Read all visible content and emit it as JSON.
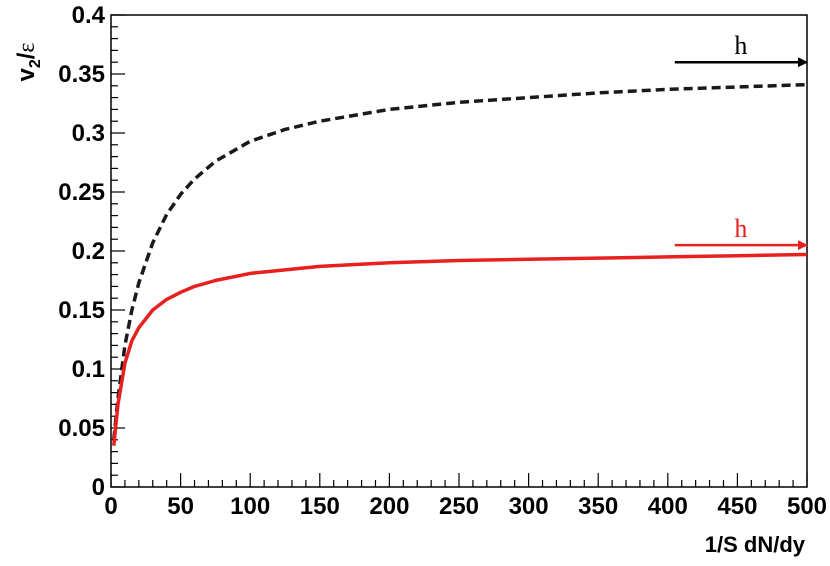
{
  "chart_data": {
    "type": "line",
    "xlabel": "1/S dN/dy",
    "ylabel": {
      "main": "v",
      "sub": "2",
      "slash": "/",
      "greek": "ε"
    },
    "xlim": [
      0,
      500
    ],
    "ylim": [
      0,
      0.4
    ],
    "x_ticks": [
      0,
      50,
      100,
      150,
      200,
      250,
      300,
      350,
      400,
      450,
      500
    ],
    "x_tick_labels": [
      "0",
      "50",
      "100",
      "150",
      "200",
      "250",
      "300",
      "350",
      "400",
      "450",
      "500"
    ],
    "y_ticks": [
      0,
      0.05,
      0.1,
      0.15,
      0.2,
      0.25,
      0.3,
      0.35,
      0.4
    ],
    "y_tick_labels": [
      "0",
      "0.05",
      "0.1",
      "0.15",
      "0.2",
      "0.25",
      "0.3",
      "0.35",
      "0.4"
    ],
    "grid": false,
    "series": [
      {
        "color": "#1a1a1a",
        "style": "dashed",
        "x": [
          2,
          5,
          10,
          15,
          20,
          30,
          40,
          50,
          60,
          75,
          100,
          125,
          150,
          200,
          250,
          300,
          350,
          400,
          450,
          500
        ],
        "y": [
          0.04,
          0.075,
          0.12,
          0.15,
          0.173,
          0.207,
          0.231,
          0.248,
          0.261,
          0.276,
          0.293,
          0.303,
          0.31,
          0.32,
          0.326,
          0.33,
          0.334,
          0.337,
          0.339,
          0.341
        ]
      },
      {
        "color": "#e8201f",
        "style": "solid",
        "x": [
          2,
          5,
          10,
          15,
          20,
          30,
          40,
          50,
          60,
          75,
          100,
          125,
          150,
          200,
          250,
          300,
          350,
          400,
          450,
          500
        ],
        "y": [
          0.035,
          0.07,
          0.105,
          0.124,
          0.135,
          0.15,
          0.159,
          0.165,
          0.17,
          0.175,
          0.181,
          0.184,
          0.187,
          0.19,
          0.192,
          0.193,
          0.194,
          0.195,
          0.196,
          0.197
        ]
      }
    ],
    "annotations": [
      {
        "text": "h",
        "color": "#000000",
        "x_start": 405,
        "x_end": 500,
        "y": 0.36
      },
      {
        "text": "h",
        "color": "#e8201f",
        "x_start": 405,
        "x_end": 500,
        "y": 0.205
      }
    ]
  }
}
